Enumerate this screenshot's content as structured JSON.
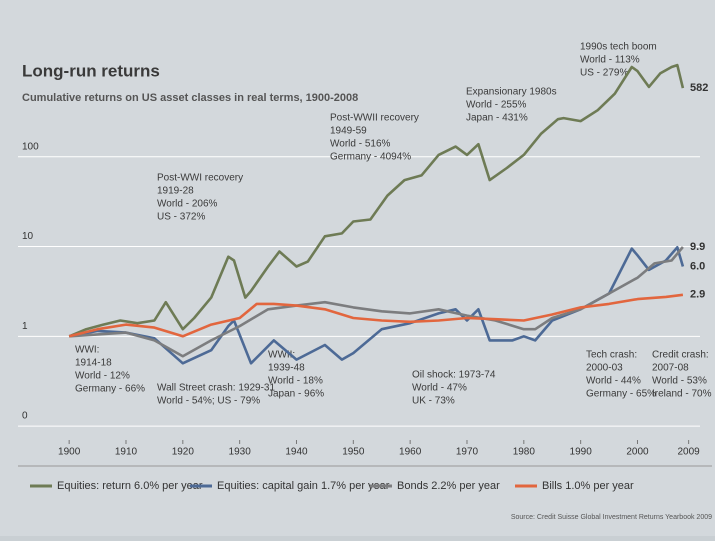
{
  "chart_data": {
    "type": "line",
    "title": "Long-run returns",
    "subtitle": "Cumulative returns on US asset classes in real terms, 1900-2008",
    "source": "Source: Credit Suisse Global Investment Returns Yearbook 2009",
    "log_scale": true,
    "grid": true,
    "legend": "bottom",
    "xlim": [
      1891,
      2011
    ],
    "xticks": [
      1900,
      1910,
      1920,
      1930,
      1940,
      1950,
      1960,
      1970,
      1980,
      1990,
      2000,
      2009
    ],
    "ylim": [
      0.07,
      2000
    ],
    "yticks": [
      {
        "value": 0.1,
        "label": "0"
      },
      1,
      10,
      100
    ],
    "series": [
      {
        "name": "Equities: return 6.0% per year",
        "color": "#6e7b55",
        "x": [
          1900,
          1903,
          1906,
          1909,
          1912,
          1915,
          1917,
          1920,
          1922,
          1925,
          1928,
          1929,
          1931,
          1932,
          1935,
          1937,
          1940,
          1942,
          1945,
          1948,
          1950,
          1953,
          1956,
          1959,
          1962,
          1965,
          1968,
          1970,
          1972,
          1974,
          1977,
          1980,
          1983,
          1986,
          1987,
          1990,
          1993,
          1996,
          1999,
          2000,
          2002,
          2004,
          2006,
          2007,
          2008
        ],
        "values": [
          1,
          1.2,
          1.35,
          1.5,
          1.4,
          1.5,
          2.4,
          1.2,
          1.6,
          2.7,
          7.7,
          7,
          2.7,
          3.2,
          6,
          8.8,
          6,
          6.8,
          13,
          14,
          19,
          20,
          37,
          55,
          62,
          105,
          130,
          105,
          138,
          55,
          75,
          105,
          180,
          262,
          270,
          250,
          330,
          505,
          1000,
          900,
          600,
          850,
          1000,
          1050,
          582
        ]
      },
      {
        "name": "Equities: capital gain 1.7% per year",
        "color": "#4d6a96",
        "x": [
          1900,
          1905,
          1910,
          1915,
          1920,
          1925,
          1928,
          1929,
          1932,
          1936,
          1940,
          1945,
          1948,
          1950,
          1955,
          1960,
          1965,
          1968,
          1970,
          1972,
          1974,
          1978,
          1980,
          1982,
          1985,
          1990,
          1995,
          1999,
          2000,
          2002,
          2005,
          2007,
          2008
        ],
        "values": [
          1,
          1.15,
          1.1,
          0.95,
          0.5,
          0.7,
          1.3,
          1.5,
          0.5,
          0.9,
          0.55,
          0.8,
          0.55,
          0.65,
          1.2,
          1.4,
          1.8,
          2,
          1.5,
          2,
          0.9,
          0.9,
          1,
          0.9,
          1.5,
          2,
          3,
          9.5,
          8,
          5.5,
          7,
          9.8,
          6
        ],
        "value_labels": [
          null,
          null,
          null,
          null,
          null,
          null,
          null,
          null,
          null,
          null,
          null,
          null,
          null,
          null,
          null,
          null,
          null,
          null,
          null,
          null,
          null,
          null,
          null,
          null,
          null,
          null,
          null,
          null,
          null,
          null,
          null,
          null,
          "6.0"
        ]
      },
      {
        "name": "Bonds 2.2% per year",
        "color": "#7c7d7f",
        "x": [
          1900,
          1910,
          1915,
          1920,
          1925,
          1930,
          1935,
          1940,
          1945,
          1950,
          1955,
          1960,
          1965,
          1970,
          1975,
          1980,
          1982,
          1985,
          1990,
          1995,
          2000,
          2003,
          2006,
          2008
        ],
        "values": [
          1,
          1.1,
          0.9,
          0.6,
          0.9,
          1.3,
          2,
          2.2,
          2.4,
          2.1,
          1.9,
          1.8,
          2,
          1.7,
          1.5,
          1.2,
          1.2,
          1.6,
          2,
          3,
          4.5,
          6.5,
          7,
          9.9
        ]
      },
      {
        "name": "Bills 1.0% per year",
        "color": "#e2663e",
        "x": [
          1900,
          1905,
          1910,
          1915,
          1920,
          1925,
          1930,
          1933,
          1936,
          1940,
          1945,
          1950,
          1955,
          1960,
          1965,
          1970,
          1975,
          1980,
          1985,
          1990,
          1995,
          2000,
          2005,
          2008
        ],
        "values": [
          1,
          1.2,
          1.35,
          1.25,
          1,
          1.35,
          1.6,
          2.3,
          2.3,
          2.2,
          2,
          1.6,
          1.5,
          1.45,
          1.5,
          1.6,
          1.55,
          1.5,
          1.75,
          2.1,
          2.3,
          2.6,
          2.75,
          2.9
        ]
      }
    ],
    "annotations": [
      {
        "lines": [
          "WWI:",
          "1914-18",
          "World - 12%",
          "Germany - 66%"
        ]
      },
      {
        "lines": [
          "Post-WWI recovery",
          "1919-28",
          "World - 206%",
          "US - 372%"
        ]
      },
      {
        "lines": [
          "Wall Street crash: 1929-31",
          "World - 54%; US - 79%"
        ]
      },
      {
        "lines": [
          "WWII:",
          "1939-48",
          "World - 18%",
          "Japan - 96%"
        ]
      },
      {
        "lines": [
          "Post-WWII recovery",
          "1949-59",
          "World - 516%",
          "Germany - 4094%"
        ]
      },
      {
        "lines": [
          "Expansionary 1980s",
          "World - 255%",
          "Japan - 431%"
        ]
      },
      {
        "lines": [
          "1990s tech boom",
          "World - 113%",
          "US - 279%"
        ]
      },
      {
        "lines": [
          "Oil shock: 1973-74",
          "World - 47%",
          "UK - 73%"
        ]
      },
      {
        "lines": [
          "Tech crash:",
          "2000-03",
          "World - 44%",
          "Germany - 65%"
        ]
      },
      {
        "lines": [
          "Credit crash:",
          "2007-08",
          "World - 53%",
          "Ireland - 70%"
        ]
      }
    ]
  }
}
